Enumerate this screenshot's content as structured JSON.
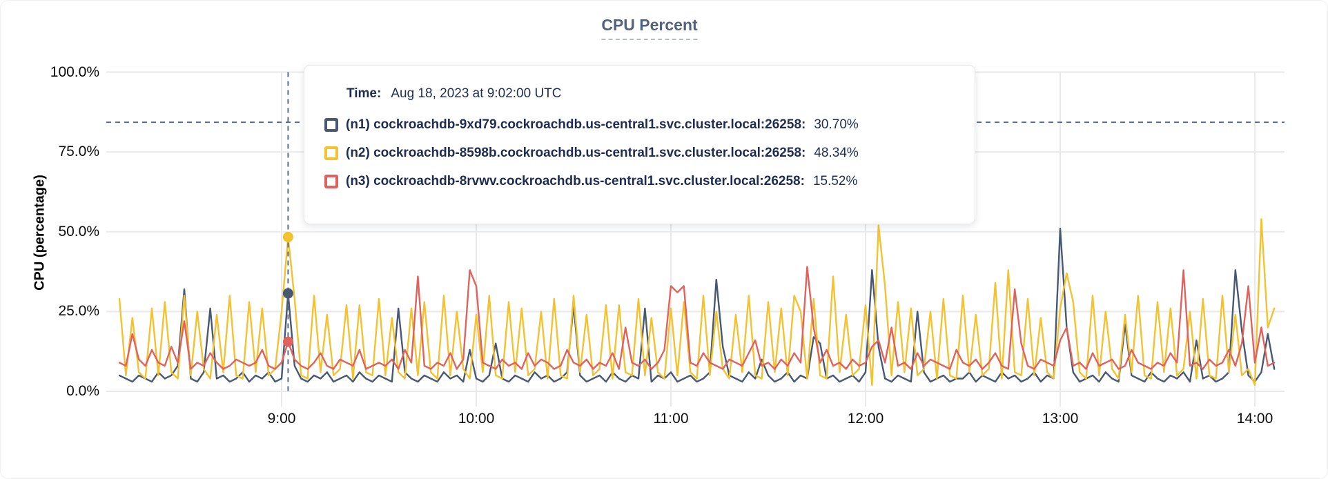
{
  "title": "CPU Percent",
  "colors": {
    "n1": "#475872",
    "n2": "#f2c230",
    "n3": "#e0625c",
    "gridline": "#e9e9e9",
    "crosshair": "#5b6d82",
    "tooltip_text": "#1d2c50",
    "title_text": "#53627c"
  },
  "y_axis": {
    "title": "CPU (percentage)",
    "ticks": [
      {
        "value": 0,
        "label": "0.0%"
      },
      {
        "value": 25,
        "label": "25.0%"
      },
      {
        "value": 50,
        "label": "50.0%"
      },
      {
        "value": 75,
        "label": "75.0%"
      },
      {
        "value": 100,
        "label": "100.0%"
      }
    ]
  },
  "x_axis": {
    "ticks": [
      {
        "minute": 540,
        "label": "9:00"
      },
      {
        "minute": 600,
        "label": "10:00"
      },
      {
        "minute": 660,
        "label": "11:00"
      },
      {
        "minute": 720,
        "label": "12:00"
      },
      {
        "minute": 780,
        "label": "13:00"
      },
      {
        "minute": 840,
        "label": "14:00"
      }
    ]
  },
  "tooltip": {
    "time_label": "Time:",
    "time_value": "Aug 18, 2023 at 9:02:00 UTC",
    "rows": [
      {
        "series": "n1",
        "label": "(n1) cockroachdb-9xd79.cockroachdb.us-central1.svc.cluster.local:26258:",
        "value": "30.70%"
      },
      {
        "series": "n2",
        "label": "(n2) cockroachdb-8598b.cockroachdb.us-central1.svc.cluster.local:26258:",
        "value": "48.34%"
      },
      {
        "series": "n3",
        "label": "(n3) cockroachdb-8rvwv.cockroachdb.us-central1.svc.cluster.local:26258:",
        "value": "15.52%"
      }
    ]
  },
  "crosshair": {
    "x_minute": 542,
    "y_percent": 84.3,
    "points": [
      {
        "series": "n1",
        "percent": 30.7
      },
      {
        "series": "n2",
        "percent": 48.34
      },
      {
        "series": "n3",
        "percent": 15.52
      }
    ]
  },
  "chart_data": {
    "type": "line",
    "title": "CPU Percent",
    "xlabel": "",
    "ylabel": "CPU (percentage)",
    "ylim": [
      0,
      100
    ],
    "x_domain_minutes": [
      487,
      849
    ],
    "x_start_minute": 490,
    "x_step_minutes": 2,
    "grid": true,
    "legend_position": "tooltip",
    "series": [
      {
        "name": "(n1) cockroachdb-9xd79.cockroachdb.us-central1.svc.cluster.local:26258",
        "color": "#475872",
        "values": [
          5,
          4,
          3,
          5,
          4,
          3,
          6,
          4,
          5,
          8,
          32,
          4,
          3,
          6,
          26,
          4,
          5,
          3,
          4,
          6,
          3,
          5,
          4,
          6,
          3,
          4,
          30.7,
          8,
          4,
          3,
          5,
          4,
          6,
          3,
          4,
          5,
          3,
          6,
          4,
          3,
          5,
          4,
          3,
          26,
          6,
          4,
          3,
          5,
          4,
          3,
          6,
          4,
          5,
          3,
          13,
          4,
          3,
          5,
          15,
          4,
          3,
          5,
          4,
          3,
          6,
          4,
          5,
          3,
          4,
          6,
          27,
          5,
          3,
          4,
          5,
          3,
          6,
          4,
          3,
          5,
          4,
          26,
          3,
          5,
          4,
          6,
          3,
          4,
          5,
          3,
          4,
          6,
          35,
          14,
          5,
          4,
          3,
          6,
          4,
          10,
          5,
          3,
          4,
          6,
          3,
          5,
          4,
          17,
          15,
          4,
          5,
          3,
          4,
          5,
          3,
          6,
          38,
          14,
          4,
          3,
          5,
          4,
          3,
          25,
          6,
          3,
          4,
          5,
          3,
          4,
          4,
          6,
          3,
          5,
          4,
          3,
          6,
          4,
          5,
          3,
          4,
          6,
          3,
          5,
          4,
          51,
          20,
          6,
          3,
          4,
          5,
          3,
          6,
          4,
          3,
          21,
          5,
          4,
          3,
          6,
          4,
          3,
          5,
          4,
          6,
          3,
          16,
          4,
          5,
          3,
          4,
          6,
          38,
          19,
          5,
          3,
          6,
          18,
          7
        ]
      },
      {
        "name": "(n2) cockroachdb-8598b.cockroachdb.us-central1.svc.cluster.local:26258",
        "color": "#f2c230",
        "values": [
          29,
          5,
          23,
          6,
          4,
          26,
          5,
          28,
          6,
          4,
          30,
          5,
          25,
          7,
          4,
          24,
          6,
          30,
          5,
          4,
          28,
          6,
          26,
          5,
          7,
          25,
          48.3,
          29,
          5,
          4,
          30,
          6,
          24,
          5,
          7,
          27,
          4,
          27,
          6,
          5,
          29,
          5,
          23,
          6,
          4,
          26,
          5,
          28,
          6,
          4,
          30,
          5,
          25,
          7,
          4,
          24,
          6,
          30,
          5,
          4,
          28,
          6,
          26,
          5,
          7,
          25,
          4,
          29,
          5,
          4,
          30,
          6,
          24,
          5,
          7,
          27,
          4,
          27,
          6,
          5,
          29,
          5,
          23,
          6,
          4,
          26,
          5,
          28,
          6,
          4,
          30,
          5,
          25,
          7,
          4,
          24,
          6,
          30,
          5,
          4,
          28,
          6,
          26,
          5,
          30,
          25,
          4,
          29,
          5,
          4,
          36,
          6,
          24,
          5,
          7,
          27,
          2,
          52,
          33,
          5,
          28,
          6,
          26,
          5,
          7,
          25,
          4,
          29,
          5,
          4,
          30,
          6,
          24,
          5,
          7,
          34,
          4,
          38,
          6,
          5,
          29,
          5,
          23,
          6,
          4,
          26,
          37,
          28,
          6,
          4,
          30,
          5,
          25,
          7,
          4,
          24,
          6,
          30,
          5,
          4,
          28,
          6,
          26,
          5,
          7,
          25,
          4,
          29,
          5,
          4,
          30,
          6,
          24,
          5,
          7,
          2,
          54,
          20,
          26
        ]
      },
      {
        "name": "(n3) cockroachdb-8rvwv.cockroachdb.us-central1.svc.cluster.local:26258",
        "color": "#e0625c",
        "values": [
          9,
          8,
          18,
          10,
          8,
          13,
          9,
          8,
          14,
          9,
          22,
          7,
          9,
          8,
          12,
          9,
          7,
          8,
          10,
          9,
          8,
          9,
          13,
          8,
          7,
          9,
          15.5,
          10,
          8,
          7,
          9,
          12,
          8,
          7,
          10,
          9,
          8,
          13,
          7,
          8,
          9,
          8,
          10,
          7,
          13,
          9,
          36,
          8,
          7,
          9,
          8,
          12,
          7,
          10,
          38,
          33,
          9,
          8,
          7,
          10,
          8,
          9,
          7,
          12,
          8,
          10,
          9,
          7,
          8,
          13,
          9,
          8,
          10,
          7,
          9,
          8,
          12,
          7,
          20,
          9,
          8,
          10,
          7,
          9,
          13,
          33,
          31,
          33,
          9,
          8,
          12,
          9,
          8,
          7,
          10,
          9,
          8,
          12,
          16,
          8,
          9,
          7,
          10,
          8,
          12,
          9,
          39,
          20,
          9,
          13,
          8,
          9,
          7,
          10,
          8,
          9,
          14,
          16,
          9,
          20,
          8,
          9,
          7,
          12,
          8,
          10,
          9,
          8,
          7,
          13,
          9,
          8,
          10,
          7,
          9,
          12,
          8,
          7,
          32,
          15,
          8,
          7,
          10,
          9,
          8,
          16,
          20,
          8,
          9,
          7,
          12,
          8,
          9,
          10,
          7,
          8,
          13,
          9,
          8,
          7,
          9,
          8,
          12,
          9,
          38,
          8,
          9,
          7,
          10,
          8,
          9,
          13,
          8,
          15,
          33,
          9,
          20,
          8,
          9
        ]
      }
    ]
  }
}
